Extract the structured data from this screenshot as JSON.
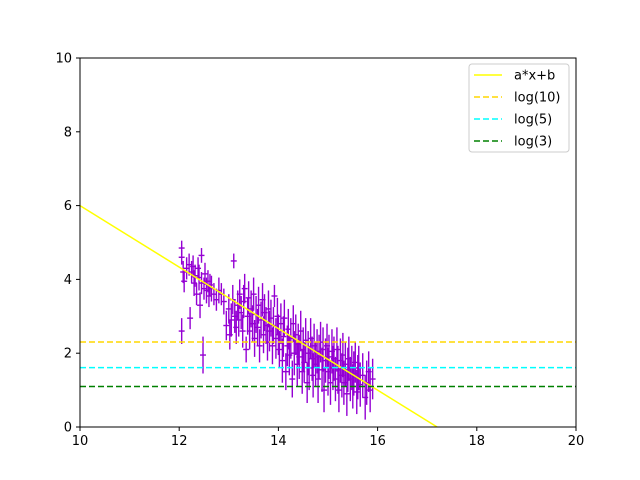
{
  "chart_data": {
    "type": "scatter",
    "title": "",
    "xlabel": "",
    "ylabel": "",
    "xlim": [
      10,
      20
    ],
    "ylim": [
      0,
      10
    ],
    "xticks": [
      10,
      12,
      14,
      16,
      18,
      20
    ],
    "yticks": [
      0,
      2,
      4,
      6,
      8,
      10
    ],
    "grid": false,
    "legend_position": "top-right",
    "colors": {
      "fit": "#ffff00",
      "log10": "#ffd700",
      "log5": "#00ffff",
      "log3": "#008000",
      "data": "#9400d3"
    },
    "lines": [
      {
        "name": "a*x+b",
        "kind": "line",
        "style": "solid",
        "points": [
          [
            10,
            6.0
          ],
          [
            17.2,
            0.0
          ]
        ]
      },
      {
        "name": "log(10)",
        "kind": "hline",
        "style": "dashed",
        "y": 2.303
      },
      {
        "name": "log(5)",
        "kind": "hline",
        "style": "dashed",
        "y": 1.609
      },
      {
        "name": "log(3)",
        "kind": "hline",
        "style": "dashed",
        "y": 1.099
      }
    ],
    "errorbar_series": {
      "xerr": 0.06,
      "points": [
        [
          12.05,
          4.85,
          0.2
        ],
        [
          12.05,
          4.6,
          0.2
        ],
        [
          12.08,
          4.2,
          0.3
        ],
        [
          12.1,
          3.95,
          0.3
        ],
        [
          12.05,
          2.6,
          0.35
        ],
        [
          12.15,
          4.3,
          0.3
        ],
        [
          12.2,
          4.4,
          0.3
        ],
        [
          12.22,
          2.95,
          0.3
        ],
        [
          12.25,
          4.2,
          0.3
        ],
        [
          12.28,
          4.35,
          0.3
        ],
        [
          12.3,
          3.9,
          0.35
        ],
        [
          12.32,
          4.1,
          0.3
        ],
        [
          12.35,
          3.6,
          0.3
        ],
        [
          12.38,
          4.3,
          0.3
        ],
        [
          12.4,
          4.05,
          0.35
        ],
        [
          12.42,
          3.3,
          0.35
        ],
        [
          12.45,
          4.65,
          0.2
        ],
        [
          12.45,
          3.9,
          0.3
        ],
        [
          12.48,
          1.95,
          0.5
        ],
        [
          12.5,
          3.75,
          0.3
        ],
        [
          12.52,
          4.15,
          0.3
        ],
        [
          12.55,
          3.7,
          0.35
        ],
        [
          12.58,
          3.95,
          0.3
        ],
        [
          12.6,
          3.55,
          0.3
        ],
        [
          12.62,
          3.85,
          0.3
        ],
        [
          12.65,
          3.75,
          0.35
        ],
        [
          12.7,
          3.6,
          0.3
        ],
        [
          12.75,
          3.45,
          0.3
        ],
        [
          12.8,
          3.7,
          0.35
        ],
        [
          12.85,
          3.6,
          0.3
        ],
        [
          12.9,
          3.4,
          0.35
        ],
        [
          12.95,
          2.75,
          0.4
        ],
        [
          13.0,
          3.2,
          0.4
        ],
        [
          13.02,
          2.5,
          0.4
        ],
        [
          13.05,
          2.9,
          0.45
        ],
        [
          13.08,
          3.45,
          0.4
        ],
        [
          13.1,
          4.5,
          0.2
        ],
        [
          13.12,
          3.0,
          0.45
        ],
        [
          13.15,
          2.7,
          0.45
        ],
        [
          13.18,
          3.3,
          0.4
        ],
        [
          13.2,
          2.9,
          0.45
        ],
        [
          13.22,
          3.6,
          0.4
        ],
        [
          13.25,
          3.1,
          0.45
        ],
        [
          13.28,
          2.6,
          0.45
        ],
        [
          13.3,
          3.4,
          0.45
        ],
        [
          13.32,
          3.75,
          0.4
        ],
        [
          13.35,
          2.1,
          0.35
        ],
        [
          13.38,
          3.0,
          0.5
        ],
        [
          13.4,
          3.5,
          0.45
        ],
        [
          13.42,
          2.6,
          0.5
        ],
        [
          13.45,
          3.2,
          0.5
        ],
        [
          13.48,
          2.8,
          0.5
        ],
        [
          13.5,
          3.6,
          0.45
        ],
        [
          13.52,
          2.4,
          0.5
        ],
        [
          13.55,
          3.05,
          0.5
        ],
        [
          13.58,
          2.7,
          0.5
        ],
        [
          13.6,
          3.3,
          0.5
        ],
        [
          13.62,
          2.2,
          0.45
        ],
        [
          13.65,
          2.9,
          0.5
        ],
        [
          13.68,
          3.45,
          0.45
        ],
        [
          13.7,
          2.5,
          0.5
        ],
        [
          13.72,
          3.1,
          0.5
        ],
        [
          13.75,
          2.75,
          0.5
        ],
        [
          13.78,
          2.3,
          0.5
        ],
        [
          13.8,
          3.2,
          0.5
        ],
        [
          13.82,
          2.6,
          0.55
        ],
        [
          13.85,
          2.95,
          0.5
        ],
        [
          13.88,
          2.2,
          0.5
        ],
        [
          13.9,
          2.75,
          0.5
        ],
        [
          13.92,
          3.55,
          0.3
        ],
        [
          13.95,
          2.4,
          0.55
        ],
        [
          13.98,
          3.0,
          0.5
        ],
        [
          14.0,
          2.5,
          0.55
        ],
        [
          14.02,
          2.1,
          0.5
        ],
        [
          14.05,
          2.8,
          0.55
        ],
        [
          14.08,
          1.8,
          0.6
        ],
        [
          14.1,
          2.45,
          0.55
        ],
        [
          14.12,
          2.95,
          0.5
        ],
        [
          14.15,
          1.5,
          0.5
        ],
        [
          14.18,
          2.2,
          0.55
        ],
        [
          14.2,
          2.65,
          0.55
        ],
        [
          14.22,
          1.95,
          0.55
        ],
        [
          14.25,
          2.4,
          0.55
        ],
        [
          14.28,
          1.3,
          0.5
        ],
        [
          14.3,
          2.8,
          0.5
        ],
        [
          14.32,
          2.0,
          0.6
        ],
        [
          14.35,
          2.5,
          0.55
        ],
        [
          14.38,
          1.7,
          0.6
        ],
        [
          14.4,
          2.25,
          0.55
        ],
        [
          14.42,
          1.9,
          0.6
        ],
        [
          14.45,
          2.6,
          0.55
        ],
        [
          14.48,
          1.5,
          0.6
        ],
        [
          14.5,
          2.1,
          0.6
        ],
        [
          14.52,
          1.75,
          0.55
        ],
        [
          14.55,
          2.35,
          0.6
        ],
        [
          14.58,
          1.2,
          0.55
        ],
        [
          14.6,
          2.0,
          0.6
        ],
        [
          14.62,
          1.6,
          0.6
        ],
        [
          14.65,
          2.4,
          0.55
        ],
        [
          14.68,
          1.85,
          0.6
        ],
        [
          14.7,
          1.4,
          0.6
        ],
        [
          14.72,
          2.2,
          0.6
        ],
        [
          14.75,
          1.7,
          0.6
        ],
        [
          14.78,
          2.05,
          0.6
        ],
        [
          14.8,
          1.3,
          0.65
        ],
        [
          14.82,
          1.9,
          0.6
        ],
        [
          14.85,
          2.3,
          0.55
        ],
        [
          14.88,
          1.55,
          0.6
        ],
        [
          14.9,
          2.1,
          0.6
        ],
        [
          14.92,
          1.0,
          0.6
        ],
        [
          14.95,
          1.8,
          0.6
        ],
        [
          14.98,
          2.2,
          0.6
        ],
        [
          15.0,
          1.5,
          0.65
        ],
        [
          15.02,
          1.9,
          0.6
        ],
        [
          15.05,
          1.2,
          0.6
        ],
        [
          15.08,
          2.05,
          0.6
        ],
        [
          15.1,
          1.6,
          0.6
        ],
        [
          15.12,
          1.85,
          0.6
        ],
        [
          15.15,
          1.3,
          0.6
        ],
        [
          15.18,
          2.1,
          0.6
        ],
        [
          15.2,
          1.55,
          0.65
        ],
        [
          15.22,
          1.0,
          0.6
        ],
        [
          15.25,
          1.8,
          0.6
        ],
        [
          15.28,
          1.4,
          0.6
        ],
        [
          15.3,
          1.95,
          0.6
        ],
        [
          15.32,
          1.2,
          0.6
        ],
        [
          15.35,
          1.7,
          0.6
        ],
        [
          15.38,
          0.9,
          0.6
        ],
        [
          15.4,
          1.55,
          0.6
        ],
        [
          15.42,
          1.85,
          0.6
        ],
        [
          15.45,
          1.3,
          0.6
        ],
        [
          15.48,
          1.6,
          0.6
        ],
        [
          15.5,
          1.1,
          0.6
        ],
        [
          15.52,
          1.45,
          0.6
        ],
        [
          15.55,
          1.75,
          0.55
        ],
        [
          15.58,
          0.95,
          0.6
        ],
        [
          15.6,
          1.35,
          0.6
        ],
        [
          15.62,
          1.6,
          0.6
        ],
        [
          15.65,
          1.15,
          0.6
        ],
        [
          15.7,
          1.4,
          0.6
        ],
        [
          15.75,
          0.8,
          0.6
        ],
        [
          15.78,
          1.2,
          0.6
        ],
        [
          15.82,
          1.5,
          0.55
        ],
        [
          15.85,
          1.0,
          0.6
        ],
        [
          15.9,
          1.3,
          0.55
        ]
      ]
    }
  }
}
